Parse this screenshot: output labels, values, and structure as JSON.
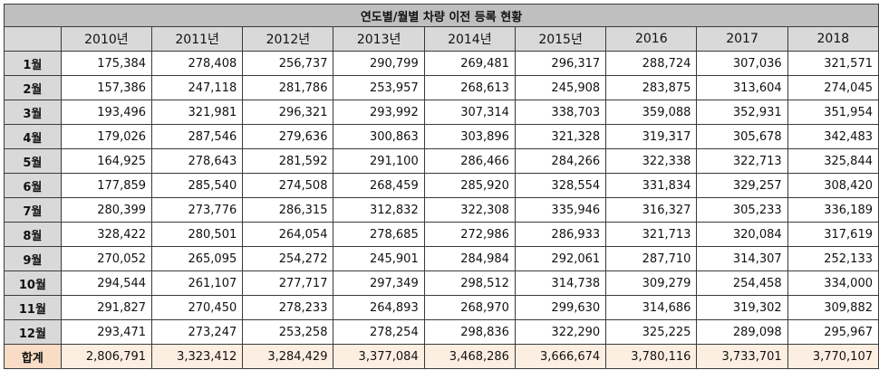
{
  "title": "연도별/월별 차량 이전 등록 현황",
  "corner": "",
  "years": [
    "2010년",
    "2011년",
    "2012년",
    "2013년",
    "2014년",
    "2015년",
    "2016",
    "2017",
    "2018"
  ],
  "rows": [
    {
      "label": "1월",
      "values": [
        "175,384",
        "278,408",
        "256,737",
        "290,799",
        "269,481",
        "296,317",
        "288,724",
        "307,036",
        "321,571"
      ]
    },
    {
      "label": "2월",
      "values": [
        "157,386",
        "247,118",
        "281,786",
        "253,957",
        "268,613",
        "245,908",
        "283,875",
        "313,604",
        "274,045"
      ]
    },
    {
      "label": "3월",
      "values": [
        "193,496",
        "321,981",
        "296,321",
        "293,992",
        "307,314",
        "338,703",
        "359,088",
        "352,931",
        "351,954"
      ]
    },
    {
      "label": "4월",
      "values": [
        "179,026",
        "287,546",
        "279,636",
        "300,863",
        "303,896",
        "321,328",
        "319,317",
        "305,678",
        "342,483"
      ]
    },
    {
      "label": "5월",
      "values": [
        "164,925",
        "278,643",
        "281,592",
        "291,100",
        "286,466",
        "284,266",
        "322,338",
        "322,713",
        "325,844"
      ]
    },
    {
      "label": "6월",
      "values": [
        "177,859",
        "285,540",
        "274,508",
        "268,459",
        "285,920",
        "328,554",
        "331,834",
        "329,257",
        "308,420"
      ]
    },
    {
      "label": "7월",
      "values": [
        "280,399",
        "273,776",
        "286,315",
        "312,832",
        "322,308",
        "335,946",
        "316,327",
        "305,233",
        "336,189"
      ]
    },
    {
      "label": "8월",
      "values": [
        "328,422",
        "280,501",
        "264,054",
        "278,685",
        "272,986",
        "286,933",
        "321,713",
        "320,084",
        "317,619"
      ]
    },
    {
      "label": "9월",
      "values": [
        "270,052",
        "265,095",
        "254,272",
        "245,901",
        "284,984",
        "292,061",
        "287,710",
        "314,307",
        "252,133"
      ]
    },
    {
      "label": "10월",
      "values": [
        "294,544",
        "261,107",
        "277,717",
        "297,349",
        "298,512",
        "314,738",
        "309,279",
        "254,458",
        "334,000"
      ]
    },
    {
      "label": "11월",
      "values": [
        "291,827",
        "270,450",
        "278,233",
        "264,893",
        "268,970",
        "299,630",
        "314,686",
        "319,302",
        "309,882"
      ]
    },
    {
      "label": "12월",
      "values": [
        "293,471",
        "273,247",
        "253,258",
        "278,254",
        "298,836",
        "322,290",
        "325,225",
        "289,098",
        "295,967"
      ]
    }
  ],
  "total": {
    "label": "합계",
    "values": [
      "2,806,791",
      "3,323,412",
      "3,284,429",
      "3,377,084",
      "3,468,286",
      "3,666,674",
      "3,780,116",
      "3,733,701",
      "3,770,107"
    ]
  },
  "colors": {
    "header_gray": "#d9d9d9",
    "title_gray": "#bfbfbf",
    "total_peach": "#fdeee2"
  }
}
